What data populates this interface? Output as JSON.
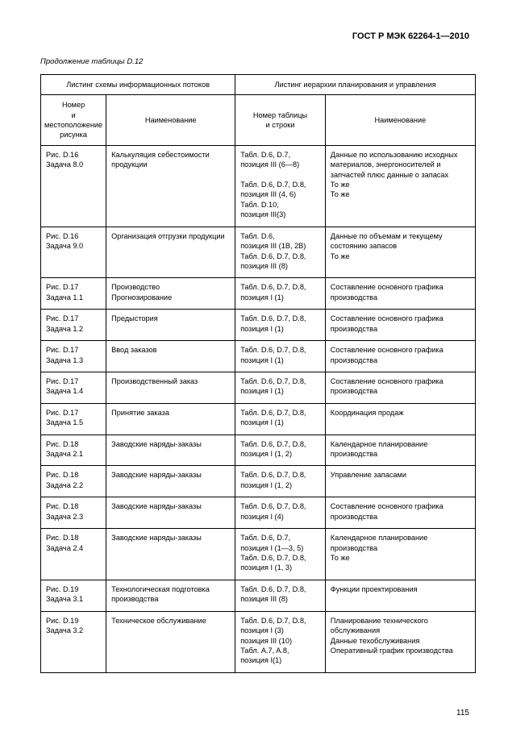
{
  "doc_id": "ГОСТ Р МЭК 62264-1—2010",
  "caption": "Продолжение таблицы D.12",
  "group_headers": {
    "left": "Листинг схемы информационных потоков",
    "right": "Листинг иерархии планирования и управления"
  },
  "col_headers": {
    "c1": "Номер\nи местоположение\nрисунка",
    "c2": "Наименование",
    "c3": "Номер таблицы\nи строки",
    "c4": "Наименование"
  },
  "rows": [
    {
      "c1": "Рис. D.16\nЗадача 8.0",
      "c2": "Калькуляция себестоимости продукции",
      "c3": "Табл. D.6, D.7,\nпозиция III (6—8)\n\nТабл. D.6, D.7, D.8,\nпозиция III (4, 6)\nТабл. D.10,\nпозиция III(3)",
      "c4": "Данные по использованию исходных материалов, энергоносителей и запчастей плюс данные о запасах\nТо же\nТо же"
    },
    {
      "c1": "Рис. D.16\nЗадача 9.0",
      "c2": "Организация отгрузки продукции",
      "c3": "Табл. D.6,\nпозиция III (1B, 2B)\nТабл. D.6, D.7, D.8,\nпозиция III (8)",
      "c4": "Данные по объемам и текущему состоянию запасов\nТо же"
    },
    {
      "c1": "Рис. D.17\nЗадача 1.1",
      "c2": "Производство\nПрогнозирование",
      "c3": "Табл. D.6, D.7, D.8,\nпозиция I (1)",
      "c4": "Составление основного графика производства"
    },
    {
      "c1": "Рис. D.17\nЗадача 1.2",
      "c2": "Предыстория",
      "c3": "Табл. D.6, D.7, D.8,\nпозиция I (1)",
      "c4": "Составление основного графика производства"
    },
    {
      "c1": "Рис. D.17\nЗадача 1.3",
      "c2": "Ввод заказов",
      "c3": "Табл. D.6, D.7, D.8,\nпозиция I (1)",
      "c4": "Составление основного графика производства"
    },
    {
      "c1": "Рис. D.17\nЗадача 1.4",
      "c2": "Производственный заказ",
      "c3": "Табл. D.6, D.7, D.8,\nпозиция I (1)",
      "c4": "Составление основного графика производства"
    },
    {
      "c1": "Рис. D.17\nЗадача 1.5",
      "c2": "Принятие заказа",
      "c3": "Табл. D.6, D.7, D.8,\nпозиция I (1)",
      "c4": "Координация продаж"
    },
    {
      "c1": "Рис. D.18\nЗадача 2.1",
      "c2": "Заводские наряды-заказы",
      "c3": "Табл. D.6, D.7, D.8,\nпозиция I (1, 2)",
      "c4": "Календарное планирование производства"
    },
    {
      "c1": "Рис. D.18\nЗадача 2.2",
      "c2": "Заводские наряды-заказы",
      "c3": "Табл. D.6, D.7, D.8,\nпозиция I (1, 2)",
      "c4": "Управление запасами"
    },
    {
      "c1": "Рис. D.18\nЗадача 2.3",
      "c2": "Заводские наряды-заказы",
      "c3": "Табл. D.6, D.7, D.8,\nпозиция I (4)",
      "c4": "Составление основного графика производства"
    },
    {
      "c1": "Рис. D.18\nЗадача 2.4",
      "c2": "Заводские наряды-заказы",
      "c3": "Табл. D.6, D.7,\nпозиция I (1—3, 5)\nТабл. D.6, D.7, D.8,\nпозиция I (1, 3)",
      "c4": "Календарное планирование производства\nТо же"
    },
    {
      "c1": "Рис. D.19\nЗадача 3.1",
      "c2": "Технологическая подготовка производства",
      "c3": "Табл. D.6, D.7, D.8,\nпозиция III (8)",
      "c4": "Функции проектирования"
    },
    {
      "c1": "Рис. D.19\nЗадача 3.2",
      "c2": "Техническое обслуживание",
      "c3": "Табл. D.6, D.7, D.8,\nпозиция I (3)\nпозиция III (10)\nТабл. A.7, A.8,\nпозиция I(1)",
      "c4": "Планирование технического обслуживания\nДанные техобслуживания\nОперативный график производства"
    }
  ],
  "page_number": "115"
}
